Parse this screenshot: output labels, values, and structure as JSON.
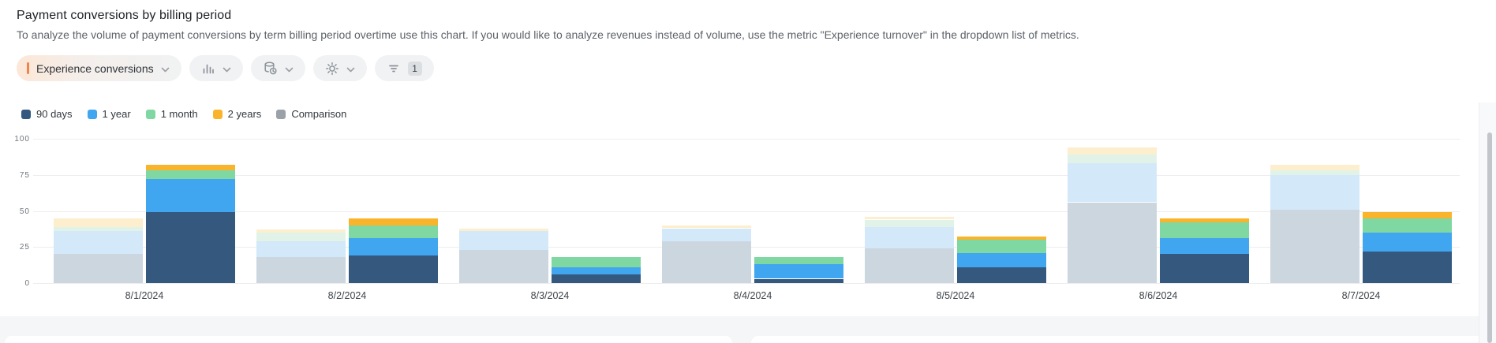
{
  "header": {
    "title": "Payment conversions by billing period",
    "subtitle": "To analyze the volume of payment conversions by term billing period overtime use this chart. If you would like to analyze revenues instead of volume, use the metric \"Experience turnover\" in the dropdown list of metrics."
  },
  "toolbar": {
    "metric_selector": {
      "label": "Experience conversions",
      "indicator_color": "#f0854a"
    },
    "chart_type_button": {
      "icon": "bar-chart-icon"
    },
    "data_period_button": {
      "icon": "database-time-icon"
    },
    "settings_button": {
      "icon": "gear-icon"
    },
    "filter_button": {
      "icon": "filter-icon",
      "badge": "1"
    }
  },
  "legend": {
    "items": [
      {
        "label": "90 days",
        "color": "#35597e"
      },
      {
        "label": "1 year",
        "color": "#41a6f0"
      },
      {
        "label": "1 month",
        "color": "#7fd7a1"
      },
      {
        "label": "2 years",
        "color": "#f9b42c"
      },
      {
        "label": "Comparison",
        "color": "#9aa1a9"
      }
    ]
  },
  "chart_data": {
    "type": "bar",
    "stacked": true,
    "grid": true,
    "legend_position": "top",
    "ylim": [
      0,
      100
    ],
    "yticks": [
      0,
      25,
      50,
      75,
      100
    ],
    "categories": [
      "8/1/2024",
      "8/2/2024",
      "8/3/2024",
      "8/4/2024",
      "8/5/2024",
      "8/6/2024",
      "8/7/2024"
    ],
    "series": [
      {
        "name": "90 days",
        "color": "#35597e",
        "values": [
          49,
          19,
          6,
          3,
          11,
          20,
          22
        ]
      },
      {
        "name": "1 year",
        "color": "#41a6f0",
        "values": [
          23,
          12,
          5,
          10,
          10,
          11,
          13
        ]
      },
      {
        "name": "1 month",
        "color": "#7fd7a1",
        "values": [
          6,
          9,
          7,
          5,
          9,
          11,
          10
        ]
      },
      {
        "name": "2 years",
        "color": "#f9b42c",
        "values": [
          4,
          5,
          0,
          0,
          2,
          3,
          4
        ]
      }
    ],
    "comparison_series": [
      {
        "name": "90 days comparison",
        "color": "#ccd6df",
        "values": [
          20,
          18,
          23,
          29,
          24,
          56,
          51
        ]
      },
      {
        "name": "1 year comparison",
        "color": "#d3e8f9",
        "values": [
          16,
          11,
          13,
          9,
          15,
          27,
          24
        ]
      },
      {
        "name": "1 month comparison",
        "color": "#e1f3e9",
        "values": [
          3,
          6,
          0,
          0,
          5,
          6,
          3
        ]
      },
      {
        "name": "2 years comparison",
        "color": "#fdeecd",
        "values": [
          6,
          2,
          2,
          2,
          2,
          5,
          4
        ]
      }
    ]
  }
}
